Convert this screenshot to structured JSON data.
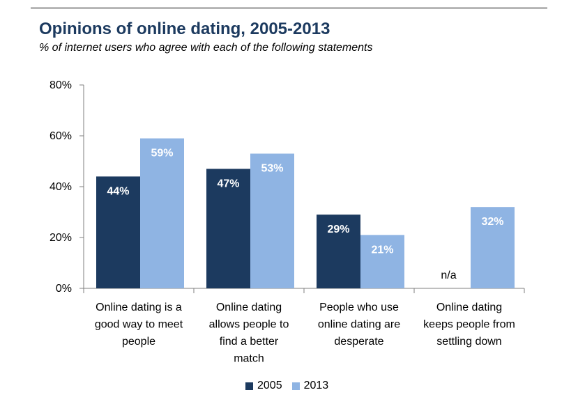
{
  "colors": {
    "2005": "#1c3a5f",
    "2013": "#8fb4e3"
  },
  "chart_data": {
    "type": "bar",
    "title": "Opinions of online dating, 2005-2013",
    "subtitle": "% of internet users who agree with each of the following statements",
    "categories": [
      [
        "Online dating is a",
        "good way to meet",
        "people"
      ],
      [
        "Online dating",
        "allows people to",
        "find a better",
        "match"
      ],
      [
        "People who use",
        "online dating are",
        "desperate"
      ],
      [
        "Online dating",
        "keeps people from",
        "settling down"
      ]
    ],
    "series": [
      {
        "name": "2005",
        "values": [
          44,
          47,
          29,
          null
        ],
        "labels": [
          "44%",
          "47%",
          "29%",
          "n/a"
        ]
      },
      {
        "name": "2013",
        "values": [
          59,
          53,
          21,
          32
        ],
        "labels": [
          "59%",
          "53%",
          "21%",
          "32%"
        ]
      }
    ],
    "y_ticks": [
      "0%",
      "20%",
      "40%",
      "60%",
      "80%"
    ],
    "ylim": [
      0,
      80
    ],
    "grid": false,
    "legend": "bottom"
  }
}
